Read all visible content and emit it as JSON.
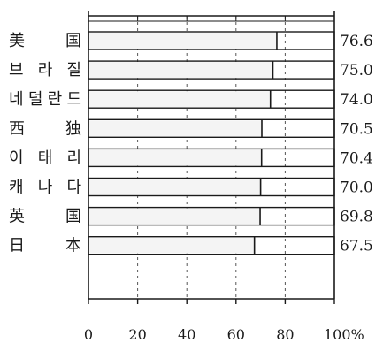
{
  "chart_data": {
    "type": "bar",
    "orientation": "horizontal",
    "categories": [
      "美　国",
      "브라질",
      "네덜란드",
      "西　独",
      "이태리",
      "캐나다",
      "英　国",
      "日　本"
    ],
    "values": [
      76.6,
      75.0,
      74.0,
      70.5,
      70.4,
      70.0,
      69.8,
      67.5
    ],
    "value_labels": [
      "76.6",
      "75.0",
      "74.0",
      "70.5",
      "70.4",
      "70.0",
      "69.8",
      "67.5"
    ],
    "x_ticks": [
      "0",
      "20",
      "40",
      "60",
      "80",
      "100%"
    ],
    "xlim": [
      0,
      100
    ],
    "grid": true,
    "title": "",
    "xlabel": "",
    "ylabel": "",
    "bar_fill": "#f4f4f4",
    "line_color": "#1a1a1a"
  }
}
